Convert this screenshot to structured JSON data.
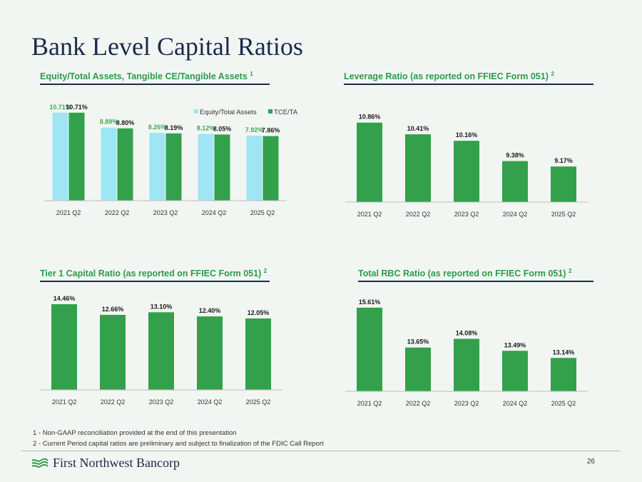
{
  "page": {
    "title": "Bank Level Capital Ratios",
    "footnotes": [
      "1 - Non-GAAP reconciliation provided at the end of this presentation",
      "2 - Current Period capital ratios are preliminary and subject to finalization of the FDIC Call Report"
    ],
    "company": "First Northwest Bancorp",
    "page_number": "26"
  },
  "panels": [
    {
      "heading": "Equity/Total Assets, Tangible CE/Tangible Assets",
      "sup": "1"
    },
    {
      "heading": "Leverage Ratio (as reported on FFIEC Form 051)",
      "sup": "2"
    },
    {
      "heading": "Tier 1 Capital Ratio (as reported on FFIEC Form 051)",
      "sup": "2"
    },
    {
      "heading": "Total RBC Ratio (as reported on FFIEC Form 051)",
      "sup": "2"
    }
  ],
  "colors": {
    "light_bar": "#9ee6f4",
    "green_bar": "#33a14b",
    "light_label": "#3dab53",
    "dark_label": "#1a1a1a",
    "axis": "#bfbfbf"
  },
  "chart_data": [
    {
      "type": "bar",
      "categories": [
        "2021 Q2",
        "2022 Q2",
        "2023 Q2",
        "2024 Q2",
        "2025 Q2"
      ],
      "series": [
        {
          "name": "Equity/Total Assets",
          "values": [
            10.71,
            8.89,
            8.26,
            8.12,
            7.92
          ],
          "labels": [
            "10.71%",
            "8.89%",
            "8.26%",
            "8.12%",
            "7.92%"
          ]
        },
        {
          "name": "TCE/TA",
          "values": [
            10.71,
            8.8,
            8.19,
            8.05,
            7.86
          ],
          "labels": [
            "10.71%",
            "8.80%",
            "8.19%",
            "8.05%",
            "7.86%"
          ]
        }
      ],
      "ylim": [
        0,
        11.3
      ],
      "legend": "top-right"
    },
    {
      "type": "bar",
      "categories": [
        "2021 Q2",
        "2022 Q2",
        "2023 Q2",
        "2024 Q2",
        "2025 Q2"
      ],
      "series": [
        {
          "name": "Leverage Ratio",
          "values": [
            10.86,
            10.41,
            10.16,
            9.38,
            9.17
          ],
          "labels": [
            "10.86%",
            "10.41%",
            "10.16%",
            "9.38%",
            "9.17%"
          ]
        }
      ],
      "ylim": [
        7.8,
        11.1
      ]
    },
    {
      "type": "bar",
      "categories": [
        "2021 Q2",
        "2022 Q2",
        "2023 Q2",
        "2024 Q2",
        "2025 Q2"
      ],
      "series": [
        {
          "name": "Tier 1 Capital Ratio",
          "values": [
            14.46,
            12.66,
            13.1,
            12.4,
            12.05
          ],
          "labels": [
            "14.46%",
            "12.66%",
            "13.10%",
            "12.40%",
            "12.05%"
          ]
        }
      ],
      "ylim": [
        0,
        14.7
      ]
    },
    {
      "type": "bar",
      "categories": [
        "2021 Q2",
        "2022 Q2",
        "2023 Q2",
        "2024 Q2",
        "2025 Q2"
      ],
      "series": [
        {
          "name": "Total RBC Ratio",
          "values": [
            15.61,
            13.65,
            14.08,
            13.49,
            13.14
          ],
          "labels": [
            "15.61%",
            "13.65%",
            "14.08%",
            "13.49%",
            "13.14%"
          ]
        }
      ],
      "ylim": [
        11.5,
        15.85
      ]
    }
  ]
}
